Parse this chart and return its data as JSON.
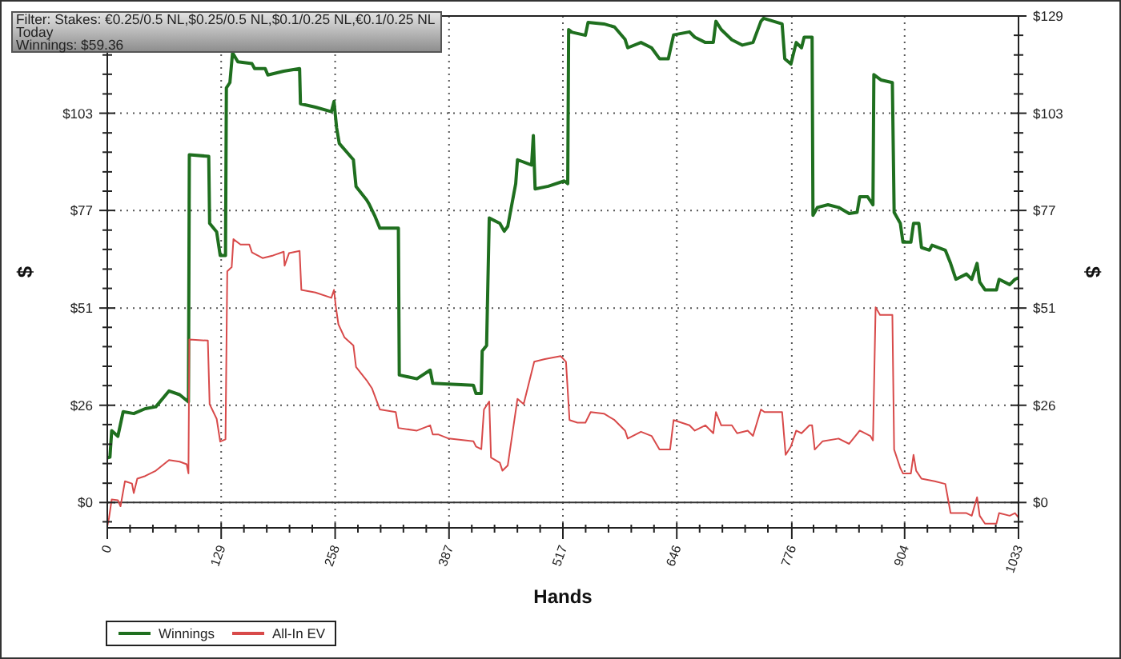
{
  "chart_data": {
    "type": "line",
    "title": "Filter: Stakes: €0.25/0.5 NL,$0.25/0.5 NL,$0.1/0.25 NL,€0.1/0.25 NL",
    "subtitle": "Today",
    "annotations": [
      "Winnings: $59.36"
    ],
    "xlabel": "Hands",
    "ylabel": "$",
    "y2label": "$",
    "xlim": [
      0,
      1033
    ],
    "xticks": [
      0,
      {
        "value": 25.8,
        "label": null
      },
      {
        "value": 51.7,
        "label": null
      },
      {
        "value": 77.5,
        "label": null
      },
      {
        "value": 103.3,
        "label": null
      },
      {
        "value": 129.1,
        "label": "129"
      },
      {
        "value": 154.9,
        "label": null
      },
      {
        "value": 180.8,
        "label": null
      },
      {
        "value": 206.6,
        "label": null
      },
      {
        "value": 232.4,
        "label": null
      },
      {
        "value": 258.3,
        "label": "258"
      },
      {
        "value": 284.1,
        "label": null
      },
      {
        "value": 309.9,
        "label": null
      },
      {
        "value": 335.7,
        "label": null
      },
      {
        "value": 361.6,
        "label": null
      },
      {
        "value": 387.4,
        "label": "387"
      },
      {
        "value": 413.2,
        "label": null
      },
      {
        "value": 439,
        "label": null
      },
      {
        "value": 464.9,
        "label": null
      },
      {
        "value": 490.7,
        "label": null
      },
      {
        "value": 516.5,
        "label": "517"
      },
      {
        "value": 542.3,
        "label": null
      },
      {
        "value": 568.2,
        "label": null
      },
      {
        "value": 594,
        "label": null
      },
      {
        "value": 619.8,
        "label": null
      },
      {
        "value": 645.6,
        "label": "646"
      },
      {
        "value": 671.5,
        "label": null
      },
      {
        "value": 697.3,
        "label": null
      },
      {
        "value": 723.1,
        "label": null
      },
      {
        "value": 748.9,
        "label": null
      },
      776,
      {
        "value": 800.6,
        "label": null
      },
      {
        "value": 826.4,
        "label": null
      },
      {
        "value": 852.2,
        "label": null
      },
      {
        "value": 878.1,
        "label": null
      },
      {
        "value": 903.9,
        "label": "904"
      },
      {
        "value": 929.7,
        "label": null
      },
      {
        "value": 955.5,
        "label": null
      },
      {
        "value": 981.4,
        "label": null
      },
      {
        "value": 1007.2,
        "label": null
      },
      1033
    ],
    "ylim": [
      -6.7,
      128.6
    ],
    "yticks": [
      {
        "value": -5.1,
        "label": null
      },
      {
        "value": 0,
        "label": "$0"
      },
      {
        "value": 5.1,
        "label": null
      },
      {
        "value": 10.3,
        "label": null
      },
      {
        "value": 15.4,
        "label": null
      },
      {
        "value": 20.6,
        "label": null
      },
      {
        "value": 25.7,
        "label": "$26"
      },
      {
        "value": 30.9,
        "label": null
      },
      {
        "value": 36,
        "label": null
      },
      {
        "value": 41.2,
        "label": null
      },
      {
        "value": 46.3,
        "label": null
      },
      {
        "value": 51.4,
        "label": "$51"
      },
      {
        "value": 56.6,
        "label": null
      },
      {
        "value": 61.7,
        "label": null
      },
      {
        "value": 66.9,
        "label": null
      },
      {
        "value": 72,
        "label": null
      },
      {
        "value": 77.2,
        "label": "$77"
      },
      {
        "value": 82.3,
        "label": null
      },
      {
        "value": 87.4,
        "label": null
      },
      {
        "value": 92.6,
        "label": null
      },
      {
        "value": 97.7,
        "label": null
      },
      {
        "value": 102.9,
        "label": "$103"
      },
      {
        "value": 108,
        "label": null
      },
      {
        "value": 113.2,
        "label": null
      },
      {
        "value": 118.3,
        "label": null
      },
      {
        "value": 123.5,
        "label": null
      },
      {
        "value": 128.6,
        "label": null
      }
    ],
    "y2lim": [
      -6.7,
      128.6
    ],
    "y2ticks": [
      {
        "value": -5.1,
        "label": null
      },
      {
        "value": 0,
        "label": "$0"
      },
      {
        "value": 5.1,
        "label": null
      },
      {
        "value": 10.3,
        "label": null
      },
      {
        "value": 15.4,
        "label": null
      },
      {
        "value": 20.6,
        "label": null
      },
      {
        "value": 25.7,
        "label": "$26"
      },
      {
        "value": 30.9,
        "label": null
      },
      {
        "value": 36,
        "label": null
      },
      {
        "value": 41.2,
        "label": null
      },
      {
        "value": 46.3,
        "label": null
      },
      {
        "value": 51.4,
        "label": "$51"
      },
      {
        "value": 56.6,
        "label": null
      },
      {
        "value": 61.7,
        "label": null
      },
      {
        "value": 66.9,
        "label": null
      },
      {
        "value": 72,
        "label": null
      },
      {
        "value": 77.2,
        "label": "$77"
      },
      {
        "value": 82.3,
        "label": null
      },
      {
        "value": 87.4,
        "label": null
      },
      {
        "value": 92.6,
        "label": null
      },
      {
        "value": 97.7,
        "label": null
      },
      {
        "value": 102.9,
        "label": "$103"
      },
      {
        "value": 108,
        "label": null
      },
      {
        "value": 113.2,
        "label": null
      },
      {
        "value": 118.3,
        "label": null
      },
      {
        "value": 123.5,
        "label": null
      },
      {
        "value": 128.6,
        "label": "$129"
      }
    ],
    "grid": true,
    "legend": "bottom left",
    "ref_lines": [
      {
        "axis": "y",
        "value": 0,
        "color": "#333333"
      }
    ],
    "series": [
      {
        "name": "Winnings",
        "color": "#1f6f1f",
        "x": [
          0,
          3,
          5,
          12,
          18,
          30,
          43,
          55,
          70,
          82,
          92,
          93,
          115,
          116,
          124,
          128,
          134,
          135,
          139,
          142,
          148,
          164,
          167,
          179,
          182,
          200,
          218,
          219,
          236,
          254,
          257,
          260,
          263,
          279,
          282,
          294,
          297,
          303,
          309,
          330,
          331,
          351,
          366,
          369,
          387,
          415,
          418,
          424,
          425,
          430,
          433,
          445,
          450,
          454,
          463,
          465,
          481,
          483,
          484,
          485,
          500,
          518,
          522,
          523,
          527,
          542,
          545,
          563,
          575,
          587,
          590,
          605,
          617,
          626,
          636,
          642,
          660,
          666,
          678,
          687,
          690,
          696,
          708,
          720,
          732,
          741,
          744,
          765,
          768,
          775,
          781,
          787,
          790,
          799,
          800,
          805,
          817,
          829,
          841,
          850,
          853,
          862,
          868,
          869,
          877,
          890,
          892,
          899,
          902,
          911,
          914,
          920,
          923,
          932,
          935,
          950,
          956,
          962,
          974,
          980,
          986,
          989,
          995,
          1008,
          1011,
          1023,
          1029,
          1033
        ],
        "values": [
          11.8,
          12,
          19,
          17.5,
          24,
          23.5,
          24.8,
          25.3,
          29.5,
          28.5,
          26.6,
          91.9,
          91.5,
          73.8,
          71.5,
          65.3,
          65.3,
          109.6,
          111,
          118.9,
          116.5,
          116,
          114.7,
          114.7,
          113,
          114,
          114.7,
          105.4,
          104.5,
          103.3,
          106,
          99,
          94.9,
          90.6,
          83.5,
          80,
          78.8,
          75.9,
          72.5,
          72.5,
          33.7,
          32.7,
          35,
          31.5,
          31.3,
          31,
          28.8,
          28.8,
          40,
          41.5,
          75.2,
          73.8,
          71.7,
          73,
          84.3,
          90.6,
          89.2,
          97,
          89.7,
          82.9,
          83.6,
          85,
          84.3,
          125,
          124.3,
          123.5,
          126.9,
          126.5,
          125.7,
          122.4,
          120.2,
          121.6,
          120.2,
          117.3,
          117.3,
          123.6,
          124.4,
          123,
          121.6,
          121.6,
          127.2,
          125,
          122.3,
          120.9,
          121.6,
          127.2,
          128,
          126.5,
          117.3,
          115.9,
          121.6,
          120.2,
          123,
          123,
          75.9,
          78,
          78.7,
          78,
          76.4,
          76.7,
          80.8,
          80.8,
          78.7,
          113.1,
          111.7,
          111,
          76.7,
          73.8,
          68.8,
          68.8,
          73.8,
          73.8,
          67.4,
          66.7,
          68,
          66.7,
          63.2,
          59,
          60.4,
          59,
          63.2,
          58.3,
          56.2,
          56.2,
          59,
          57.6,
          59,
          59.4
        ]
      },
      {
        "name": "All-In EV",
        "color": "#d84a4a",
        "x": [
          0,
          2,
          5,
          12,
          15,
          20,
          28,
          30,
          34,
          43,
          55,
          70,
          82,
          90,
          92,
          93,
          114,
          116,
          124,
          128,
          134,
          136,
          141,
          143,
          151,
          161,
          164,
          176,
          188,
          200,
          201,
          206,
          218,
          220,
          236,
          254,
          257,
          259,
          262,
          269,
          279,
          282,
          294,
          300,
          309,
          327,
          330,
          351,
          366,
          369,
          375,
          387,
          415,
          418,
          424,
          427,
          433,
          435,
          445,
          448,
          454,
          465,
          472,
          484,
          496,
          514,
          520,
          524,
          533,
          542,
          548,
          563,
          575,
          587,
          590,
          605,
          617,
          626,
          638,
          642,
          660,
          666,
          678,
          687,
          690,
          696,
          708,
          714,
          726,
          732,
          741,
          745,
          765,
          769,
          775,
          781,
          787,
          796,
          799,
          802,
          811,
          829,
          841,
          853,
          865,
          868,
          871,
          876,
          890,
          892,
          899,
          902,
          911,
          914,
          917,
          923,
          938,
          950,
          956,
          974,
          980,
          986,
          989,
          995,
          1008,
          1011,
          1023,
          1029,
          1033
        ],
        "values": [
          -6.3,
          -4,
          0.8,
          0.6,
          -1,
          5.6,
          5,
          2.5,
          6.3,
          7,
          8.4,
          11.2,
          10.8,
          10.1,
          7.7,
          43.1,
          42.8,
          26,
          22.1,
          16.1,
          16.7,
          61.1,
          62.2,
          69.6,
          68.2,
          68.2,
          66.1,
          64.6,
          65.3,
          66.3,
          62.6,
          65.9,
          66.5,
          56.2,
          55.5,
          54.1,
          56.2,
          51.9,
          47.1,
          43.6,
          41.5,
          35.8,
          32.3,
          30.2,
          24.6,
          23.9,
          19.7,
          19,
          20.4,
          18,
          18,
          16.9,
          16.2,
          14.8,
          14.1,
          24.6,
          26.7,
          11.9,
          10.5,
          8.4,
          9.8,
          27.4,
          26,
          37.2,
          37.9,
          38.7,
          37.2,
          21.8,
          21.1,
          21.1,
          23.9,
          23.5,
          21.8,
          19,
          16.9,
          18.7,
          17.6,
          14,
          14,
          21.8,
          20.4,
          19,
          20.4,
          18.3,
          23.9,
          20.4,
          20.4,
          18.3,
          19,
          17.6,
          24.6,
          23.9,
          23.9,
          12.6,
          14.8,
          19,
          18.3,
          20.4,
          20.4,
          14,
          16.2,
          16.9,
          15.5,
          19,
          17.6,
          16.4,
          51.6,
          49.6,
          49.6,
          14,
          9.1,
          7.7,
          7.7,
          12.6,
          8.4,
          6.3,
          5.6,
          4.9,
          -2.8,
          -2.8,
          -3.5,
          1.4,
          -3.5,
          -5.6,
          -5.6,
          -2.8,
          -3.5,
          -2.8,
          -4
        ]
      }
    ]
  }
}
